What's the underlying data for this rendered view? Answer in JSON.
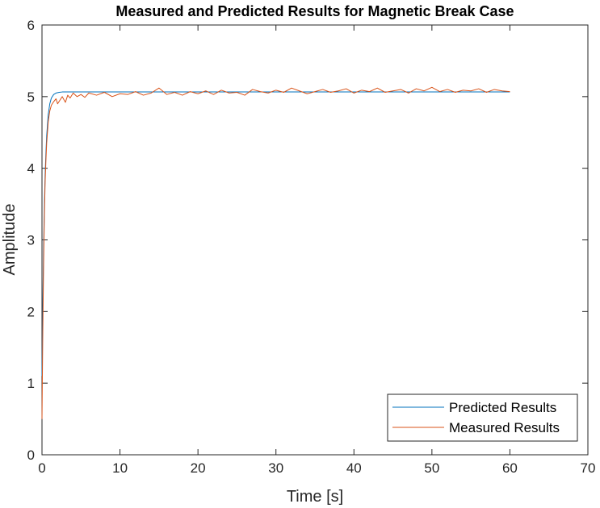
{
  "chart_data": {
    "type": "line",
    "title": "Measured and Predicted Results for Magnetic Break Case",
    "xlabel": "Time [s]",
    "ylabel": "Amplitude",
    "xlim": [
      0,
      70
    ],
    "ylim": [
      0,
      6
    ],
    "x_ticks": [
      "0",
      "10",
      "20",
      "30",
      "40",
      "50",
      "60",
      "70"
    ],
    "y_ticks": [
      "0",
      "1",
      "2",
      "3",
      "4",
      "5",
      "6"
    ],
    "grid": false,
    "legend_position": "bottom-right",
    "series": [
      {
        "name": "Predicted Results",
        "color": "#0072BD",
        "x": [
          0,
          0.1,
          0.2,
          0.3,
          0.4,
          0.5,
          0.6,
          0.8,
          1.0,
          1.2,
          1.5,
          1.8,
          2.2,
          2.6,
          3,
          4,
          5,
          10,
          20,
          30,
          40,
          50,
          60
        ],
        "y": [
          1.1,
          2.05,
          2.85,
          3.45,
          3.9,
          4.2,
          4.45,
          4.75,
          4.9,
          4.98,
          5.03,
          5.05,
          5.06,
          5.065,
          5.065,
          5.065,
          5.065,
          5.065,
          5.065,
          5.065,
          5.065,
          5.065,
          5.065
        ]
      },
      {
        "name": "Measured Results",
        "color": "#D95319",
        "x": [
          0,
          0.1,
          0.2,
          0.3,
          0.4,
          0.5,
          0.6,
          0.8,
          1.0,
          1.2,
          1.5,
          1.8,
          2.0,
          2.3,
          2.6,
          3.0,
          3.3,
          3.6,
          4.0,
          4.5,
          5,
          5.5,
          6,
          7,
          8,
          9,
          10,
          11,
          12,
          13,
          14,
          15,
          16,
          17,
          18,
          19,
          20,
          21,
          22,
          23,
          24,
          25,
          26,
          27,
          28,
          29,
          30,
          31,
          32,
          33,
          34,
          35,
          36,
          37,
          38,
          39,
          40,
          41,
          42,
          43,
          44,
          45,
          46,
          47,
          48,
          49,
          50,
          51,
          52,
          53,
          54,
          55,
          56,
          57,
          58,
          59,
          60
        ],
        "y": [
          0.5,
          1.7,
          2.6,
          3.3,
          3.8,
          4.1,
          4.35,
          4.65,
          4.8,
          4.88,
          4.93,
          4.97,
          4.9,
          4.95,
          5.0,
          4.92,
          5.02,
          4.98,
          5.05,
          5.0,
          5.03,
          4.99,
          5.05,
          5.02,
          5.06,
          5.0,
          5.04,
          5.03,
          5.07,
          5.02,
          5.05,
          5.12,
          5.03,
          5.06,
          5.02,
          5.07,
          5.04,
          5.08,
          5.03,
          5.09,
          5.05,
          5.06,
          5.02,
          5.1,
          5.07,
          5.05,
          5.09,
          5.06,
          5.12,
          5.08,
          5.04,
          5.07,
          5.1,
          5.06,
          5.08,
          5.11,
          5.05,
          5.09,
          5.07,
          5.12,
          5.06,
          5.08,
          5.1,
          5.05,
          5.11,
          5.08,
          5.13,
          5.07,
          5.1,
          5.06,
          5.09,
          5.08,
          5.11,
          5.06,
          5.1,
          5.08,
          5.07
        ]
      }
    ]
  }
}
